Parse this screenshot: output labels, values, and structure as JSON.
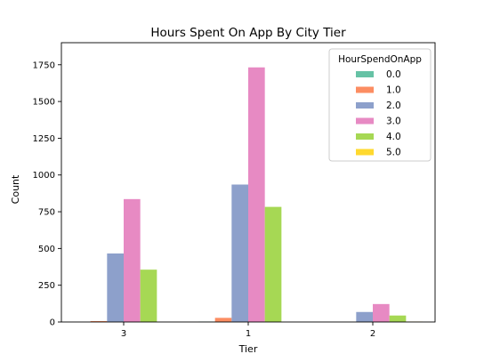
{
  "chart_data": {
    "type": "bar",
    "title": "Hours Spent On App By City Tier",
    "xlabel": "Tier",
    "ylabel": "Count",
    "categories": [
      "3",
      "1",
      "2"
    ],
    "ylim": [
      0,
      1900
    ],
    "yticks": [
      0,
      250,
      500,
      750,
      1000,
      1250,
      1500,
      1750
    ],
    "grid": false,
    "legend": {
      "title": "HourSpendOnApp",
      "placement": "top-right"
    },
    "series": [
      {
        "name": "0.0",
        "color": "#66c2a5",
        "values": [
          0,
          3,
          0
        ]
      },
      {
        "name": "1.0",
        "color": "#fc8d62",
        "values": [
          6,
          28,
          0
        ]
      },
      {
        "name": "2.0",
        "color": "#8da0cb",
        "values": [
          466,
          935,
          68
        ]
      },
      {
        "name": "3.0",
        "color": "#e78ac3",
        "values": [
          836,
          1732,
          122
        ]
      },
      {
        "name": "4.0",
        "color": "#a6d854",
        "values": [
          356,
          783,
          44
        ]
      },
      {
        "name": "5.0",
        "color": "#ffd92f",
        "values": [
          0,
          0,
          3
        ]
      }
    ]
  }
}
